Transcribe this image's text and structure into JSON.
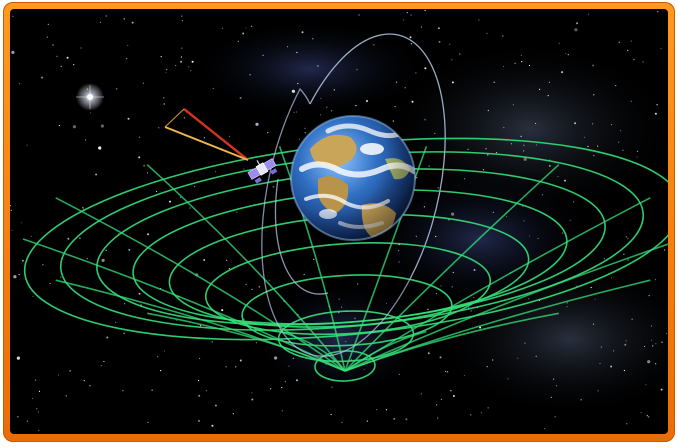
{
  "scene": {
    "subject": "earth-gravity-well",
    "colors": {
      "frame": "#f58a12",
      "space": "#000000",
      "grid": "#35e07a",
      "ocean": "#2f6fc2",
      "land": "#c9a55a",
      "orbit": "#b8c8e8",
      "beam_red": "#d2331f",
      "beam_gold": "#f0b54a",
      "satellite": "#9c8cf0"
    },
    "icons": [
      "earth-icon",
      "satellite-icon",
      "bright-star-icon"
    ]
  }
}
